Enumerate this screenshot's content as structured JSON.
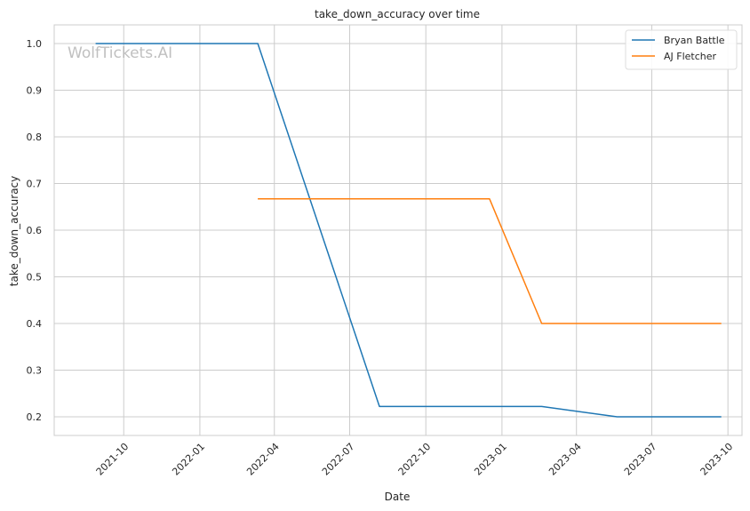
{
  "chart_data": {
    "type": "line",
    "title": "take_down_accuracy over time",
    "xlabel": "Date",
    "ylabel": "take_down_accuracy",
    "xlim": [
      "2021-07-09",
      "2023-10-18"
    ],
    "ylim": [
      0.16,
      1.04
    ],
    "x_ticks": [
      "2021-10",
      "2022-01",
      "2022-04",
      "2022-07",
      "2022-10",
      "2023-01",
      "2023-04",
      "2023-07",
      "2023-10"
    ],
    "y_ticks": [
      0.2,
      0.3,
      0.4,
      0.5,
      0.6,
      0.7,
      0.8,
      0.9,
      1.0
    ],
    "grid": true,
    "legend_position": "top-right",
    "watermark": "WolfTickets.AI",
    "series": [
      {
        "name": "Bryan Battle",
        "color": "#1f77b4",
        "points": [
          {
            "x": "2021-08-28",
            "y": 1.0
          },
          {
            "x": "2022-03-12",
            "y": 1.0
          },
          {
            "x": "2022-08-06",
            "y": 0.222
          },
          {
            "x": "2023-02-18",
            "y": 0.222
          },
          {
            "x": "2023-05-20",
            "y": 0.2
          },
          {
            "x": "2023-09-23",
            "y": 0.2
          }
        ]
      },
      {
        "name": "AJ Fletcher",
        "color": "#ff7f0e",
        "points": [
          {
            "x": "2022-03-12",
            "y": 0.667
          },
          {
            "x": "2022-12-17",
            "y": 0.667
          },
          {
            "x": "2023-02-18",
            "y": 0.4
          },
          {
            "x": "2023-09-23",
            "y": 0.4
          }
        ]
      }
    ]
  }
}
